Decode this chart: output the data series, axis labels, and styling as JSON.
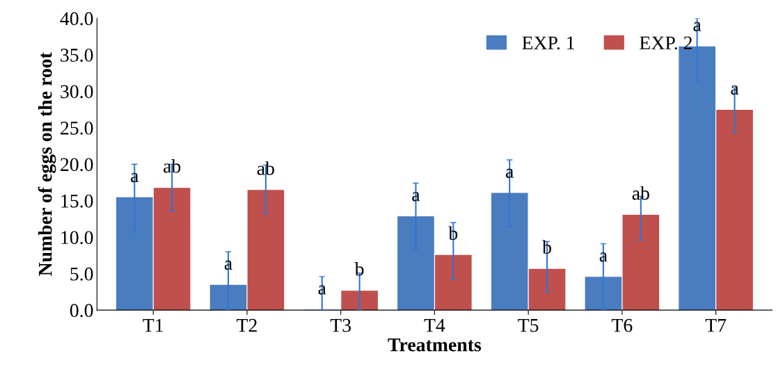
{
  "chart_data": {
    "type": "bar",
    "xlabel": "Treatments",
    "ylabel": "Number of eggs on the root",
    "categories": [
      "T1",
      "T2",
      "T3",
      "T4",
      "T5",
      "T6",
      "T7"
    ],
    "series": [
      {
        "name": "EXP. 1",
        "color": "#4a7cc0",
        "values": [
          15.4,
          3.4,
          0,
          12.8,
          16.0,
          4.5,
          36.1
        ],
        "errors": [
          [
            10.7,
            20.0
          ],
          [
            0,
            8.0
          ],
          [
            0,
            4.6
          ],
          [
            8.2,
            17.4
          ],
          [
            11.5,
            20.6
          ],
          [
            0,
            9.1
          ],
          [
            31.5,
            40.0
          ]
        ],
        "value_labels": [
          "a",
          "a",
          "a",
          "a",
          "a",
          "a",
          "a"
        ]
      },
      {
        "name": "EXP. 2",
        "color": "#c0504d",
        "values": [
          16.7,
          16.4,
          2.6,
          7.5,
          5.6,
          13.0,
          27.4
        ],
        "errors": [
          [
            13.6,
            20.0
          ],
          [
            13.2,
            19.9
          ],
          [
            0,
            5.1
          ],
          [
            4.3,
            12.0
          ],
          [
            2.5,
            9.4
          ],
          [
            9.6,
            15.6
          ],
          [
            24.3,
            30.5
          ]
        ],
        "value_labels": [
          "ab",
          "ab",
          "b",
          "b",
          "b",
          "ab",
          "a"
        ]
      }
    ],
    "ylim": [
      0,
      40
    ],
    "yticks": [
      {
        "value": 0,
        "label": "0.0"
      },
      {
        "value": 5,
        "label": "5.0"
      },
      {
        "value": 10,
        "label": "10.0"
      },
      {
        "value": 15,
        "label": "15.0"
      },
      {
        "value": 20,
        "label": "20.0"
      },
      {
        "value": 25,
        "label": "25.0"
      },
      {
        "value": 30,
        "label": "30.0"
      },
      {
        "value": 35,
        "label": "35.0"
      },
      {
        "value": 40,
        "label": "40.0"
      }
    ],
    "legend": "top right",
    "grid": false
  }
}
